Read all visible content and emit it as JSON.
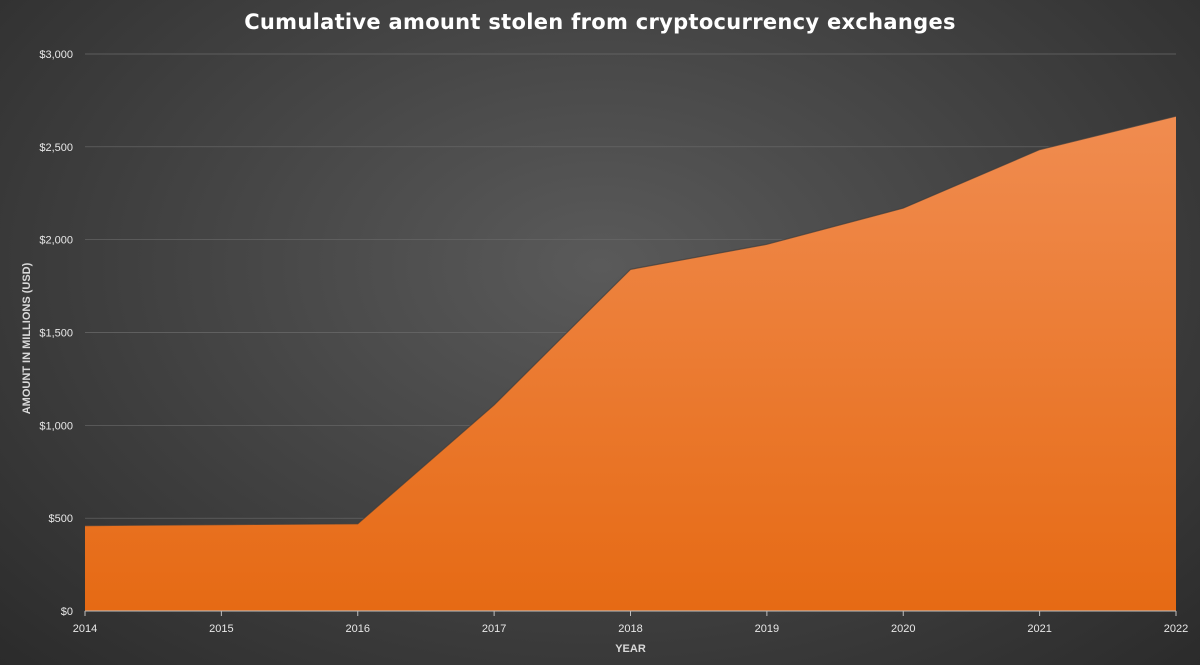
{
  "chart_data": {
    "type": "area",
    "title": "Cumulative amount stolen from cryptocurrency exchanges",
    "xlabel": "YEAR",
    "ylabel": "AMOUNT IN MILLIONS (USD)",
    "x": [
      "2014",
      "2015",
      "2016",
      "2017",
      "2018",
      "2019",
      "2020",
      "2021",
      "2022"
    ],
    "series": [
      {
        "values": [
          460,
          465,
          470,
          1110,
          1840,
          1975,
          2170,
          2485,
          2665
        ]
      }
    ],
    "ylim": [
      0,
      3000
    ],
    "yticks": [
      0,
      500,
      1000,
      1500,
      2000,
      2500,
      3000
    ],
    "ytick_labels": [
      "$0",
      "$500",
      "$1,000",
      "$1,500",
      "$2,000",
      "$2,500",
      "$3,000"
    ],
    "grid": true,
    "legend": "none",
    "colors": {
      "fill_top": "#f08c50",
      "fill_bottom": "#e66a14",
      "outline": "#3c3c3c"
    }
  }
}
